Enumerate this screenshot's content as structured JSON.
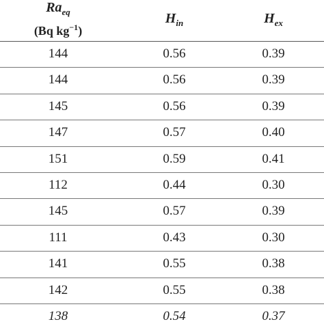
{
  "table": {
    "headers": [
      {
        "main": "Ra",
        "sub": "eq",
        "unit": "(Bq kg",
        "sup": "−1",
        "unit_end": ")"
      },
      {
        "main": "H",
        "sub": "in"
      },
      {
        "main": "H",
        "sub": "ex"
      }
    ],
    "rows": [
      [
        "144",
        "0.56",
        "0.39"
      ],
      [
        "144",
        "0.56",
        "0.39"
      ],
      [
        "145",
        "0.56",
        "0.39"
      ],
      [
        "147",
        "0.57",
        "0.40"
      ],
      [
        "151",
        "0.59",
        "0.41"
      ],
      [
        "112",
        "0.44",
        "0.30"
      ],
      [
        "145",
        "0.57",
        "0.39"
      ],
      [
        "111",
        "0.43",
        "0.30"
      ],
      [
        "141",
        "0.55",
        "0.38"
      ],
      [
        "142",
        "0.55",
        "0.38"
      ],
      [
        "138",
        "0.54",
        "0.37"
      ]
    ]
  }
}
